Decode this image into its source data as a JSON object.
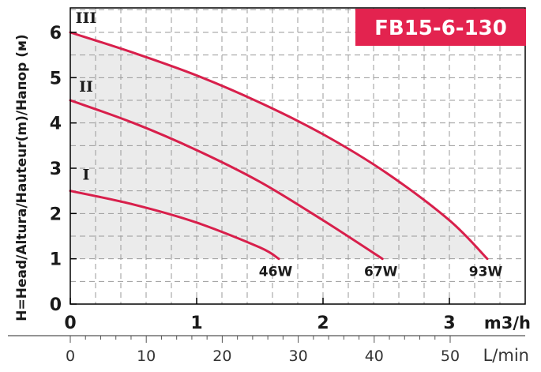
{
  "chart_data": {
    "type": "line",
    "title": "FB15-6-130",
    "ylabel": "H=Head/Altura/Hauteur(m)/Напор (м)",
    "xlabel": "m3/h",
    "xlabel_secondary": "L/min",
    "xlim": [
      0,
      3.5
    ],
    "ylim": [
      0,
      6.5
    ],
    "x_ticks": [
      "0",
      "1",
      "2",
      "3"
    ],
    "y_ticks": [
      "0",
      "1",
      "2",
      "3",
      "4",
      "5",
      "6"
    ],
    "secondary_ticks": [
      "0",
      "10",
      "20",
      "30",
      "40",
      "50"
    ],
    "secondary_tick_values": [
      0,
      10,
      20,
      30,
      40,
      50
    ],
    "grid": true,
    "operating_area_fill": true,
    "series": [
      {
        "name": "I",
        "power_label": "46W",
        "x": [
          0,
          0.5,
          1.0,
          1.5,
          1.65
        ],
        "y": [
          2.5,
          2.2,
          1.8,
          1.25,
          1.0
        ]
      },
      {
        "name": "II",
        "power_label": "67W",
        "x": [
          0,
          0.5,
          1.0,
          1.5,
          2.0,
          2.47
        ],
        "y": [
          4.5,
          4.0,
          3.4,
          2.7,
          1.85,
          1.0
        ]
      },
      {
        "name": "III",
        "power_label": "93W",
        "x": [
          0,
          0.5,
          1.0,
          1.5,
          2.0,
          2.5,
          3.0,
          3.3
        ],
        "y": [
          6.0,
          5.55,
          5.05,
          4.45,
          3.75,
          2.9,
          1.85,
          1.0
        ]
      }
    ],
    "colors": {
      "curve": "#d81f4b",
      "title_bg": "#e3234f",
      "area_fill": "#ebebeb",
      "grid": "#9a9a9a"
    }
  }
}
